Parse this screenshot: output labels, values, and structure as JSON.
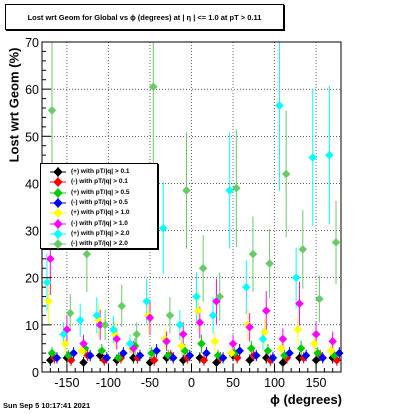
{
  "chart_data": {
    "type": "scatter",
    "title": "Lost wrt Geom for Global vs ϕ (degrees) at | η | <= 1.0 at pT > 0.11",
    "xlabel": "ϕ (degrees)",
    "ylabel": "Lost wrt Geom (%)",
    "xlim": [
      -180,
      180
    ],
    "ylim": [
      0,
      70
    ],
    "xticks": [
      -150,
      -100,
      -50,
      0,
      50,
      100,
      150
    ],
    "yticks": [
      0,
      10,
      20,
      30,
      40,
      50,
      60,
      70
    ],
    "grid": true,
    "legend_position": "left",
    "series": [
      {
        "name": "(+) with pT/|q| > 0.1",
        "color": "#000000",
        "marker": "diamond",
        "x": [
          -170,
          -150,
          -130,
          -110,
          -90,
          -70,
          -50,
          -30,
          -10,
          10,
          30,
          50,
          70,
          90,
          110,
          130,
          150,
          170
        ],
        "y": [
          2.5,
          3.0,
          2.0,
          3.5,
          2.5,
          3.0,
          2.0,
          3.0,
          2.5,
          3.0,
          2.0,
          3.5,
          2.5,
          3.0,
          2.0,
          3.0,
          2.5,
          3.0
        ]
      },
      {
        "name": "(-) with pT/|q| > 0.1",
        "color": "#ff0000",
        "marker": "diamond",
        "x": [
          -165,
          -145,
          -125,
          -105,
          -85,
          -65,
          -45,
          -25,
          -5,
          15,
          35,
          55,
          75,
          95,
          115,
          135,
          155,
          175
        ],
        "y": [
          3.0,
          2.5,
          3.5,
          2.5,
          3.0,
          3.0,
          2.5,
          3.5,
          3.0,
          2.5,
          3.0,
          3.0,
          3.5,
          2.5,
          3.0,
          3.0,
          3.5,
          2.5
        ]
      },
      {
        "name": "(+) with pT/|q| > 0.5",
        "color": "#00cc00",
        "marker": "diamond",
        "x": [
          -168,
          -148,
          -128,
          -108,
          -88,
          -68,
          -48,
          -28,
          -8,
          12,
          32,
          52,
          72,
          92,
          112,
          132,
          152,
          172
        ],
        "y": [
          4.0,
          3.5,
          5.0,
          4.5,
          3.0,
          5.5,
          4.0,
          3.5,
          4.5,
          6.0,
          3.5,
          4.0,
          5.0,
          4.5,
          3.5,
          5.0,
          4.0,
          3.5
        ]
      },
      {
        "name": "(-) with pT/|q| > 0.5",
        "color": "#0000ff",
        "marker": "diamond",
        "x": [
          -162,
          -142,
          -122,
          -102,
          -82,
          -62,
          -42,
          -22,
          -2,
          18,
          38,
          58,
          78,
          98,
          118,
          138,
          158,
          178
        ],
        "y": [
          3.0,
          4.0,
          3.5,
          3.0,
          4.0,
          3.5,
          4.5,
          3.0,
          3.5,
          4.0,
          3.0,
          4.5,
          3.5,
          3.0,
          4.0,
          3.5,
          3.0,
          4.0
        ]
      },
      {
        "name": "(+) with pT/|q| > 1.0",
        "color": "#ffff00",
        "marker": "diamond",
        "x": [
          -172,
          -152,
          -132,
          -112,
          -92,
          -72,
          -52,
          -32,
          -12,
          8,
          28,
          48,
          68,
          88,
          108,
          128,
          148,
          168
        ],
        "y": [
          15.0,
          6.0,
          4.5,
          11.0,
          8.0,
          5.0,
          12.0,
          7.0,
          5.5,
          13.0,
          6.5,
          4.0,
          10.0,
          8.5,
          5.0,
          9.0,
          6.0,
          4.5
        ]
      },
      {
        "name": "(-) with pT/|q| > 1.0",
        "color": "#ff00ff",
        "marker": "diamond",
        "x": [
          -170,
          -150,
          -130,
          -110,
          -90,
          -70,
          -50,
          -30,
          -10,
          10,
          30,
          50,
          70,
          90,
          110,
          130,
          150,
          170
        ],
        "y": [
          24.0,
          9.0,
          6.0,
          10.0,
          7.0,
          5.0,
          11.5,
          6.5,
          8.0,
          10.5,
          15.0,
          6.0,
          9.5,
          13.0,
          7.0,
          14.5,
          8.0,
          6.5
        ]
      },
      {
        "name": "(+) with pT/|q| > 2.0",
        "color": "#00ffff",
        "marker": "diamond",
        "x": [
          -174,
          -154,
          -134,
          -114,
          -94,
          -74,
          -54,
          -34,
          -14,
          6,
          26,
          46,
          66,
          86,
          106,
          126,
          146,
          166
        ],
        "y": [
          19.0,
          8.0,
          11.0,
          12.0,
          9.0,
          6.0,
          15.0,
          30.5,
          10.0,
          16.0,
          12.0,
          38.5,
          18.0,
          7.0,
          56.5,
          20.0,
          45.5,
          46.0
        ]
      },
      {
        "name": "(-) with pT/|q| > 2.0",
        "color": "#66cc66",
        "marker": "diamond",
        "x": [
          -168,
          -146,
          -126,
          -104,
          -84,
          -66,
          -46,
          -26,
          -6,
          14,
          34,
          54,
          74,
          94,
          114,
          134,
          154,
          174
        ],
        "y": [
          55.5,
          12.5,
          25.0,
          10.0,
          14.0,
          8.0,
          60.5,
          12.0,
          38.5,
          22.0,
          16.0,
          39.0,
          25.0,
          23.0,
          42.0,
          26.0,
          15.5,
          27.5
        ]
      }
    ]
  }
}
